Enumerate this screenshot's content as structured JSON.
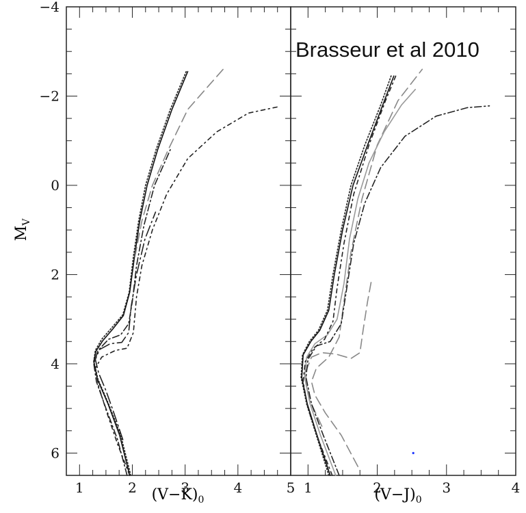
{
  "chart_data": [
    {
      "type": "line",
      "panel": "left",
      "xlabel_main": "(V−K)",
      "xlabel_sub": "0",
      "ylabel_main": "M",
      "ylabel_sub": "V",
      "xlim": [
        0.75,
        5.0
      ],
      "ylim": [
        6.5,
        -4.0
      ],
      "y_inverted": true,
      "x_ticks": [
        {
          "value": 1,
          "label": "1"
        },
        {
          "value": 2,
          "label": "2"
        },
        {
          "value": 3,
          "label": "3"
        },
        {
          "value": 4,
          "label": "4"
        },
        {
          "value": 5,
          "label": "5"
        }
      ],
      "y_ticks": [
        {
          "value": -4,
          "label": "−4"
        },
        {
          "value": -2,
          "label": "−2"
        },
        {
          "value": 0,
          "label": "0"
        },
        {
          "value": 2,
          "label": "2"
        },
        {
          "value": 4,
          "label": "4"
        },
        {
          "value": 6,
          "label": "6"
        }
      ],
      "series": [
        {
          "style": "dotted",
          "color": "#333333",
          "points": [
            [
              1.97,
              6.5
            ],
            [
              1.78,
              5.6
            ],
            [
              1.55,
              4.9
            ],
            [
              1.35,
              4.35
            ],
            [
              1.27,
              3.95
            ],
            [
              1.3,
              3.7
            ],
            [
              1.42,
              3.45
            ],
            [
              1.62,
              3.18
            ],
            [
              1.82,
              2.9
            ],
            [
              1.94,
              2.4
            ],
            [
              2.02,
              1.6
            ],
            [
              2.12,
              0.8
            ],
            [
              2.25,
              0.0
            ],
            [
              2.45,
              -0.8
            ],
            [
              2.72,
              -1.7
            ],
            [
              3.02,
              -2.55
            ]
          ]
        },
        {
          "style": "solid",
          "color": "#111111",
          "points": [
            [
              1.95,
              6.5
            ],
            [
              1.76,
              5.6
            ],
            [
              1.54,
              4.9
            ],
            [
              1.34,
              4.35
            ],
            [
              1.27,
              3.95
            ],
            [
              1.31,
              3.72
            ],
            [
              1.44,
              3.48
            ],
            [
              1.63,
              3.22
            ],
            [
              1.83,
              2.92
            ],
            [
              1.95,
              2.4
            ],
            [
              2.04,
              1.6
            ],
            [
              2.14,
              0.8
            ],
            [
              2.28,
              0.0
            ],
            [
              2.48,
              -0.8
            ],
            [
              2.75,
              -1.7
            ],
            [
              3.05,
              -2.55
            ]
          ]
        },
        {
          "style": "long-dash",
          "color": "#888888",
          "points": [
            [
              2.05,
              1.6
            ],
            [
              2.18,
              0.8
            ],
            [
              2.38,
              0.0
            ],
            [
              2.68,
              -0.8
            ],
            [
              3.05,
              -1.7
            ],
            [
              3.72,
              -2.6
            ]
          ]
        },
        {
          "style": "dash-dot",
          "color": "#222222",
          "points": [
            [
              1.9,
              6.5
            ],
            [
              1.72,
              5.7
            ],
            [
              1.5,
              5.0
            ],
            [
              1.32,
              4.4
            ],
            [
              1.27,
              4.0
            ],
            [
              1.35,
              3.7
            ],
            [
              1.55,
              3.45
            ],
            [
              1.78,
              3.35
            ],
            [
              1.93,
              3.1
            ],
            [
              2.0,
              2.6
            ],
            [
              2.08,
              1.8
            ],
            [
              2.22,
              0.9
            ],
            [
              2.42,
              0.0
            ],
            [
              2.72,
              -0.8
            ]
          ]
        },
        {
          "style": "long-dash-dot",
          "color": "#222222",
          "points": [
            [
              1.82,
              5.7
            ],
            [
              1.65,
              5.1
            ],
            [
              1.5,
              4.6
            ],
            [
              1.36,
              4.2
            ],
            [
              1.3,
              3.9
            ],
            [
              1.38,
              3.68
            ],
            [
              1.58,
              3.55
            ],
            [
              1.8,
              3.52
            ],
            [
              1.93,
              3.3
            ],
            [
              1.98,
              2.7
            ],
            [
              2.08,
              2.0
            ],
            [
              2.24,
              1.2
            ],
            [
              2.44,
              0.6
            ]
          ]
        },
        {
          "style": "dash-dot-sparse",
          "color": "#222222",
          "points": [
            [
              1.95,
              6.5
            ],
            [
              1.72,
              5.8
            ],
            [
              1.52,
              5.1
            ],
            [
              1.36,
              4.5
            ],
            [
              1.3,
              4.1
            ],
            [
              1.42,
              3.85
            ],
            [
              1.68,
              3.7
            ],
            [
              1.9,
              3.65
            ],
            [
              2.02,
              3.3
            ],
            [
              2.08,
              2.5
            ],
            [
              2.18,
              1.8
            ],
            [
              2.38,
              1.0
            ],
            [
              2.65,
              0.2
            ],
            [
              3.05,
              -0.6
            ],
            [
              3.6,
              -1.2
            ],
            [
              4.2,
              -1.62
            ],
            [
              4.8,
              -1.77
            ]
          ]
        }
      ]
    },
    {
      "type": "line",
      "panel": "right",
      "xlabel_main": "(V−J)",
      "xlabel_sub": "0",
      "xlim": [
        0.75,
        4.0
      ],
      "ylim": [
        6.5,
        -4.0
      ],
      "y_inverted": true,
      "x_ticks": [
        {
          "value": 1,
          "label": "1"
        },
        {
          "value": 2,
          "label": "2"
        },
        {
          "value": 3,
          "label": "3"
        },
        {
          "value": 4,
          "label": "4"
        }
      ],
      "series": [
        {
          "style": "dotted",
          "color": "#333333",
          "points": [
            [
              1.3,
              6.5
            ],
            [
              1.12,
              5.6
            ],
            [
              0.98,
              4.9
            ],
            [
              0.9,
              4.3
            ],
            [
              0.92,
              3.8
            ],
            [
              1.02,
              3.5
            ],
            [
              1.15,
              3.25
            ],
            [
              1.28,
              2.8
            ],
            [
              1.36,
              2.0
            ],
            [
              1.48,
              1.0
            ],
            [
              1.62,
              0.0
            ],
            [
              1.82,
              -0.9
            ],
            [
              2.05,
              -1.8
            ],
            [
              2.2,
              -2.45
            ]
          ]
        },
        {
          "style": "solid-dark",
          "color": "#111111",
          "points": [
            [
              1.32,
              6.5
            ],
            [
              1.13,
              5.6
            ],
            [
              0.99,
              4.9
            ],
            [
              0.91,
              4.3
            ],
            [
              0.93,
              3.8
            ],
            [
              1.04,
              3.5
            ],
            [
              1.17,
              3.25
            ],
            [
              1.3,
              2.8
            ],
            [
              1.38,
              2.0
            ],
            [
              1.5,
              1.0
            ],
            [
              1.65,
              0.0
            ],
            [
              1.86,
              -0.9
            ],
            [
              2.08,
              -1.8
            ],
            [
              2.24,
              -2.45
            ]
          ]
        },
        {
          "style": "long-dash",
          "color": "#888888",
          "points": [
            [
              1.2,
              5.4
            ],
            [
              1.02,
              4.8
            ],
            [
              0.96,
              4.2
            ],
            [
              1.05,
              3.85
            ],
            [
              1.2,
              3.75
            ],
            [
              1.4,
              3.78
            ],
            [
              1.62,
              3.88
            ],
            [
              1.75,
              3.75
            ],
            [
              1.8,
              3.2
            ],
            [
              1.86,
              2.6
            ],
            [
              1.92,
              2.1
            ]
          ]
        },
        {
          "style": "long-dash",
          "color": "#888888",
          "points": [
            [
              1.72,
              6.3
            ],
            [
              1.48,
              5.6
            ],
            [
              1.25,
              5.1
            ],
            [
              1.1,
              4.7
            ],
            [
              1.05,
              4.4
            ],
            [
              1.12,
              4.1
            ],
            [
              1.3,
              3.85
            ],
            [
              1.45,
              3.4
            ],
            [
              1.52,
              2.6
            ],
            [
              1.62,
              1.5
            ],
            [
              1.78,
              0.3
            ],
            [
              2.0,
              -0.9
            ],
            [
              2.3,
              -1.9
            ],
            [
              2.65,
              -2.6
            ]
          ]
        },
        {
          "style": "solid-gray",
          "color": "#999999",
          "points": [
            [
              1.4,
              6.5
            ],
            [
              1.18,
              5.6
            ],
            [
              1.03,
              4.9
            ],
            [
              0.95,
              4.3
            ],
            [
              0.98,
              3.85
            ],
            [
              1.1,
              3.55
            ],
            [
              1.28,
              3.35
            ],
            [
              1.42,
              3.0
            ],
            [
              1.52,
              2.2
            ],
            [
              1.6,
              1.2
            ],
            [
              1.72,
              0.3
            ],
            [
              1.88,
              -0.5
            ],
            [
              2.1,
              -1.2
            ],
            [
              2.35,
              -1.8
            ],
            [
              2.55,
              -2.15
            ]
          ]
        },
        {
          "style": "dash-dot",
          "color": "#222222",
          "points": [
            [
              1.45,
              6.5
            ],
            [
              1.22,
              5.6
            ],
            [
              1.05,
              4.9
            ],
            [
              0.97,
              4.3
            ],
            [
              1.0,
              3.9
            ],
            [
              1.12,
              3.6
            ],
            [
              1.32,
              3.5
            ],
            [
              1.48,
              3.1
            ],
            [
              1.56,
              2.3
            ],
            [
              1.66,
              1.3
            ],
            [
              1.82,
              0.4
            ],
            [
              2.05,
              -0.4
            ],
            [
              2.4,
              -1.1
            ],
            [
              2.85,
              -1.55
            ],
            [
              3.3,
              -1.74
            ],
            [
              3.62,
              -1.78
            ]
          ]
        },
        {
          "style": "dash-dot-sparse",
          "color": "#222222",
          "points": [
            [
              1.35,
              6.5
            ],
            [
              1.15,
              5.7
            ],
            [
              1.0,
              5.0
            ],
            [
              0.93,
              4.4
            ],
            [
              0.96,
              3.95
            ],
            [
              1.08,
              3.65
            ],
            [
              1.24,
              3.45
            ],
            [
              1.36,
              3.05
            ],
            [
              1.42,
              2.3
            ],
            [
              1.52,
              1.3
            ],
            [
              1.66,
              0.2
            ],
            [
              1.88,
              -0.9
            ],
            [
              2.12,
              -1.9
            ],
            [
              2.28,
              -2.5
            ]
          ]
        }
      ],
      "markers": [
        {
          "x": 2.52,
          "y": 6.0,
          "color": "#1a33ff"
        }
      ]
    }
  ],
  "annotation": {
    "text": "Brasseur et al 2010"
  }
}
